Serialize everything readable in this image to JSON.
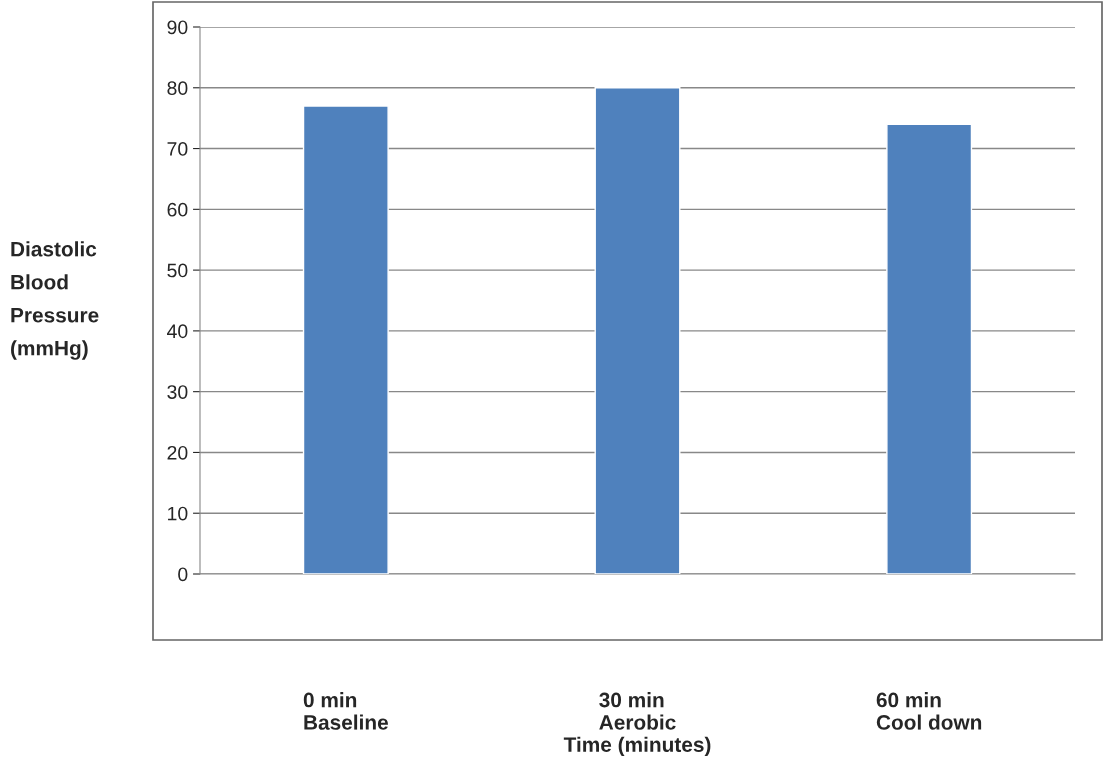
{
  "chart_data": {
    "type": "bar",
    "categories": [
      "0 min\nBaseline",
      "30 min\nAerobic",
      "60 min\nCool down"
    ],
    "values": [
      77,
      80,
      74
    ],
    "color": "#4f81bd",
    "xlabel": "Time (minutes)",
    "ylabel": "Diastolic\nBlood\nPressure\n(mmHg)",
    "ylim": [
      0,
      90
    ],
    "yticks": [
      0,
      10,
      20,
      30,
      40,
      50,
      60,
      70,
      80,
      90
    ],
    "grid": "y",
    "legend": false
  }
}
